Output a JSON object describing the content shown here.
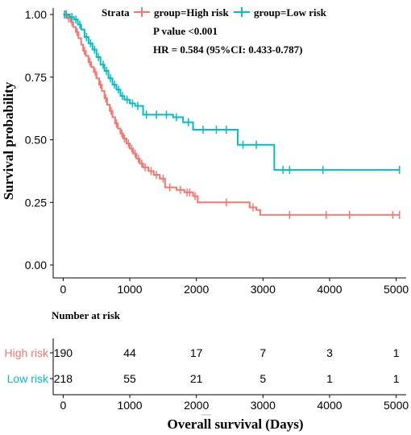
{
  "chart_data": {
    "type": "line",
    "subtype": "kaplan-meier",
    "xlabel": "Overall survival  (Days)",
    "ylabel": "Survival probability",
    "xlim": [
      -150,
      5150
    ],
    "ylim": [
      0,
      1
    ],
    "x_ticks": [
      "0",
      "1000",
      "2000",
      "3000",
      "4000",
      "5000"
    ],
    "y_ticks": [
      "0.00",
      "0.25",
      "0.50",
      "0.75",
      "1.00"
    ],
    "legend": {
      "title": "Strata",
      "position": "top"
    },
    "annotations": {
      "pvalue": "P value <0.001",
      "hr": "HR = 0.584 (95%CI: 0.433-0.787)"
    },
    "series": [
      {
        "name": "group=High risk",
        "color": "#F8766D",
        "steps": [
          [
            0,
            1.0
          ],
          [
            60,
            0.985
          ],
          [
            110,
            0.97
          ],
          [
            150,
            0.95
          ],
          [
            190,
            0.93
          ],
          [
            230,
            0.905
          ],
          [
            270,
            0.88
          ],
          [
            300,
            0.855
          ],
          [
            340,
            0.835
          ],
          [
            380,
            0.81
          ],
          [
            420,
            0.79
          ],
          [
            460,
            0.77
          ],
          [
            500,
            0.745
          ],
          [
            540,
            0.72
          ],
          [
            580,
            0.695
          ],
          [
            620,
            0.665
          ],
          [
            660,
            0.64
          ],
          [
            700,
            0.615
          ],
          [
            740,
            0.59
          ],
          [
            780,
            0.565
          ],
          [
            820,
            0.545
          ],
          [
            860,
            0.525
          ],
          [
            900,
            0.505
          ],
          [
            950,
            0.485
          ],
          [
            1000,
            0.465
          ],
          [
            1050,
            0.445
          ],
          [
            1100,
            0.425
          ],
          [
            1150,
            0.405
          ],
          [
            1200,
            0.39
          ],
          [
            1280,
            0.375
          ],
          [
            1360,
            0.36
          ],
          [
            1450,
            0.345
          ],
          [
            1530,
            0.31
          ],
          [
            1700,
            0.3
          ],
          [
            1820,
            0.29
          ],
          [
            1950,
            0.275
          ],
          [
            2020,
            0.25
          ],
          [
            2800,
            0.23
          ],
          [
            2900,
            0.22
          ],
          [
            2960,
            0.2
          ]
        ],
        "end": 5050,
        "censors": [
          [
            30,
            1.0
          ],
          [
            80,
            0.985
          ],
          [
            130,
            0.97
          ],
          [
            210,
            0.93
          ],
          [
            320,
            0.855
          ],
          [
            400,
            0.81
          ],
          [
            480,
            0.77
          ],
          [
            560,
            0.72
          ],
          [
            640,
            0.665
          ],
          [
            720,
            0.615
          ],
          [
            800,
            0.565
          ],
          [
            880,
            0.525
          ],
          [
            920,
            0.505
          ],
          [
            980,
            0.485
          ],
          [
            1030,
            0.465
          ],
          [
            1080,
            0.445
          ],
          [
            1130,
            0.425
          ],
          [
            1180,
            0.405
          ],
          [
            1230,
            0.39
          ],
          [
            1320,
            0.375
          ],
          [
            1400,
            0.36
          ],
          [
            1500,
            0.345
          ],
          [
            1600,
            0.31
          ],
          [
            1760,
            0.3
          ],
          [
            1860,
            0.29
          ],
          [
            1900,
            0.29
          ],
          [
            1980,
            0.275
          ],
          [
            2450,
            0.25
          ],
          [
            2850,
            0.23
          ],
          [
            3400,
            0.2
          ],
          [
            3950,
            0.2
          ],
          [
            4300,
            0.2
          ],
          [
            4950,
            0.2
          ],
          [
            5050,
            0.2
          ]
        ]
      },
      {
        "name": "group=Low risk",
        "color": "#00BFC4",
        "steps": [
          [
            0,
            1.0
          ],
          [
            100,
            0.99
          ],
          [
            160,
            0.98
          ],
          [
            220,
            0.96
          ],
          [
            270,
            0.94
          ],
          [
            320,
            0.91
          ],
          [
            380,
            0.885
          ],
          [
            440,
            0.86
          ],
          [
            500,
            0.83
          ],
          [
            560,
            0.8
          ],
          [
            620,
            0.775
          ],
          [
            680,
            0.745
          ],
          [
            740,
            0.72
          ],
          [
            800,
            0.7
          ],
          [
            860,
            0.675
          ],
          [
            920,
            0.66
          ],
          [
            1000,
            0.645
          ],
          [
            1080,
            0.635
          ],
          [
            1200,
            0.6
          ],
          [
            1650,
            0.59
          ],
          [
            1800,
            0.57
          ],
          [
            1950,
            0.54
          ],
          [
            2620,
            0.48
          ],
          [
            3170,
            0.38
          ]
        ],
        "end": 5050,
        "censors": [
          [
            20,
            1.0
          ],
          [
            50,
            1.0
          ],
          [
            130,
            0.99
          ],
          [
            190,
            0.98
          ],
          [
            250,
            0.96
          ],
          [
            350,
            0.91
          ],
          [
            410,
            0.885
          ],
          [
            470,
            0.86
          ],
          [
            530,
            0.83
          ],
          [
            600,
            0.8
          ],
          [
            650,
            0.775
          ],
          [
            710,
            0.745
          ],
          [
            770,
            0.72
          ],
          [
            830,
            0.7
          ],
          [
            890,
            0.675
          ],
          [
            960,
            0.66
          ],
          [
            1040,
            0.645
          ],
          [
            1120,
            0.635
          ],
          [
            1250,
            0.6
          ],
          [
            1400,
            0.6
          ],
          [
            1550,
            0.6
          ],
          [
            1700,
            0.59
          ],
          [
            1880,
            0.57
          ],
          [
            2100,
            0.54
          ],
          [
            2300,
            0.54
          ],
          [
            2450,
            0.54
          ],
          [
            2700,
            0.48
          ],
          [
            2900,
            0.48
          ],
          [
            3300,
            0.38
          ],
          [
            3400,
            0.38
          ],
          [
            3900,
            0.38
          ],
          [
            5050,
            0.38
          ]
        ]
      }
    ]
  },
  "risk_table": {
    "title": "Number at risk",
    "x_ticks": [
      "0",
      "1000",
      "2000",
      "3000",
      "4000",
      "5000"
    ],
    "rows": [
      {
        "label": "High risk",
        "color": "#F8766D",
        "values": [
          "190",
          "44",
          "17",
          "7",
          "3",
          "1"
        ]
      },
      {
        "label": "Low risk",
        "color": "#00BFC4",
        "values": [
          "218",
          "55",
          "21",
          "5",
          "1",
          "1"
        ]
      }
    ]
  }
}
